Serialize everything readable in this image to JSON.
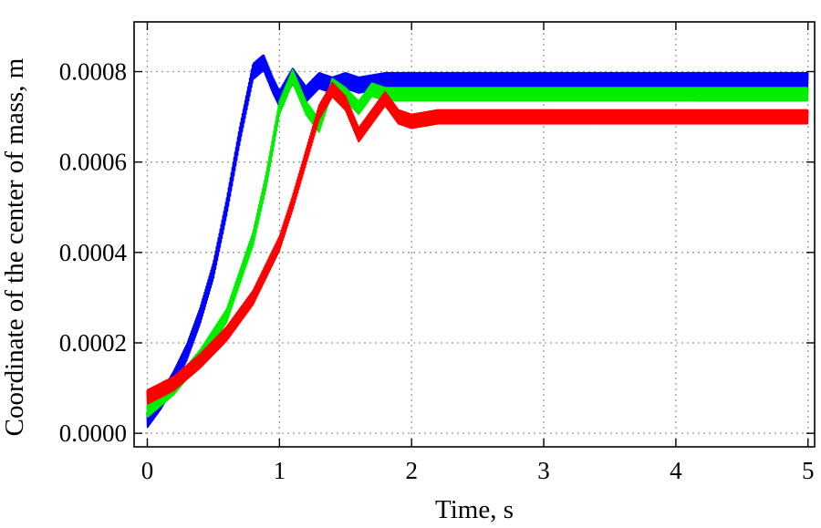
{
  "chart_data": {
    "type": "line",
    "title": "",
    "xlabel": "Time, s",
    "ylabel": "Coordinate of the center of mass, m",
    "xlim": [
      -0.1,
      5.05
    ],
    "ylim": [
      -3e-05,
      0.00091
    ],
    "x_ticks": [
      0,
      1,
      2,
      3,
      4,
      5
    ],
    "y_ticks": [
      0.0,
      0.0002,
      0.0004,
      0.0006,
      0.0008
    ],
    "x_tick_labels": [
      "0",
      "1",
      "2",
      "3",
      "4",
      "5"
    ],
    "y_tick_labels": [
      "0.0000",
      "0.0002",
      "0.0004",
      "0.0006",
      "0.0008"
    ],
    "grid": true,
    "legend": "none",
    "series": [
      {
        "color": "#0000ff",
        "oscillation_amplitude": 1.7e-05,
        "x": [
          0,
          0.1,
          0.2,
          0.3,
          0.4,
          0.5,
          0.6,
          0.7,
          0.8,
          0.88,
          0.95,
          1.0,
          1.1,
          1.2,
          1.3,
          1.4,
          1.5,
          1.6,
          1.8,
          2.0,
          2.5,
          3.0,
          4.0,
          5.0
        ],
        "y": [
          3e-05,
          7e-05,
          0.00012,
          0.00018,
          0.00026,
          0.00036,
          0.0005,
          0.00066,
          0.0008,
          0.00082,
          0.00077,
          0.00074,
          0.00079,
          0.00075,
          0.00078,
          0.00077,
          0.00078,
          0.00077,
          0.00078,
          0.00078,
          0.00078,
          0.00078,
          0.00078,
          0.00078
        ]
      },
      {
        "color": "#00ee00",
        "oscillation_amplitude": 1.4e-05,
        "x": [
          0,
          0.2,
          0.4,
          0.6,
          0.8,
          0.9,
          1.0,
          1.1,
          1.2,
          1.3,
          1.4,
          1.5,
          1.6,
          1.7,
          1.8,
          2.0,
          2.5,
          3.0,
          4.0,
          5.0
        ],
        "y": [
          5e-05,
          0.0001,
          0.00017,
          0.00026,
          0.00043,
          0.00056,
          0.00072,
          0.00079,
          0.00072,
          0.00068,
          0.00077,
          0.00075,
          0.00072,
          0.00076,
          0.00075,
          0.00075,
          0.00075,
          0.00075,
          0.00075,
          0.00075
        ]
      },
      {
        "color": "#ff0000",
        "oscillation_amplitude": 1.5e-05,
        "x": [
          0,
          0.2,
          0.4,
          0.6,
          0.8,
          1.0,
          1.1,
          1.2,
          1.3,
          1.4,
          1.5,
          1.6,
          1.7,
          1.8,
          1.9,
          2.0,
          2.2,
          2.5,
          3.0,
          4.0,
          5.0
        ],
        "y": [
          8e-05,
          0.00011,
          0.00016,
          0.00022,
          0.0003,
          0.00042,
          0.00051,
          0.00061,
          0.00071,
          0.00076,
          0.00073,
          0.00066,
          0.0007,
          0.00074,
          0.0007,
          0.00069,
          0.0007,
          0.0007,
          0.0007,
          0.0007,
          0.0007
        ]
      }
    ]
  }
}
